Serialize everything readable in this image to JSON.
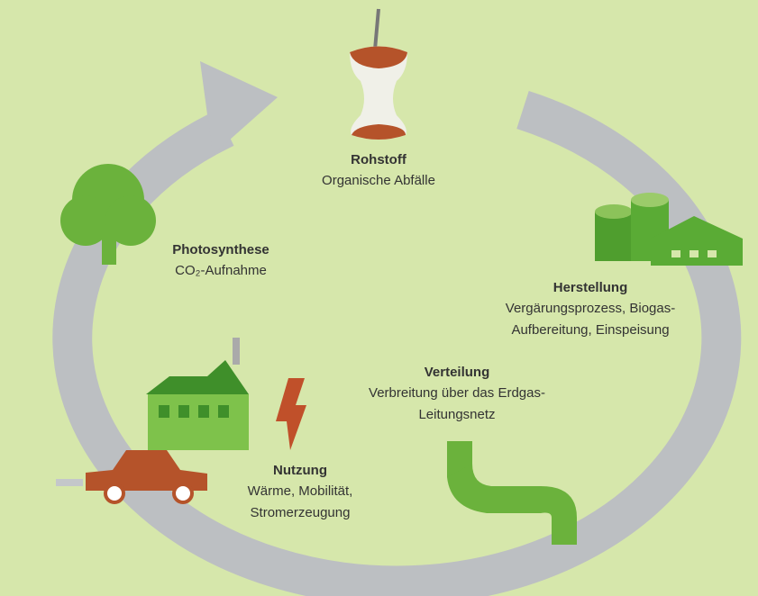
{
  "nodes": [
    {
      "title": "Rohstoff",
      "lines": [
        "Organische Abfälle"
      ]
    },
    {
      "title": "Photosynthese",
      "lines": [
        "CO₂-Aufnahme"
      ]
    },
    {
      "title": "Herstellung",
      "lines": [
        "Vergärungsprozess, Biogas-",
        "Aufbereitung, Einspeisung"
      ]
    },
    {
      "title": "Verteilung",
      "lines": [
        "Verbreitung über das Erdgas-",
        "Leitungsnetz"
      ]
    },
    {
      "title": "Nutzung",
      "lines": [
        "Wärme, Mobilität,",
        "Stromerzeugung"
      ]
    }
  ]
}
